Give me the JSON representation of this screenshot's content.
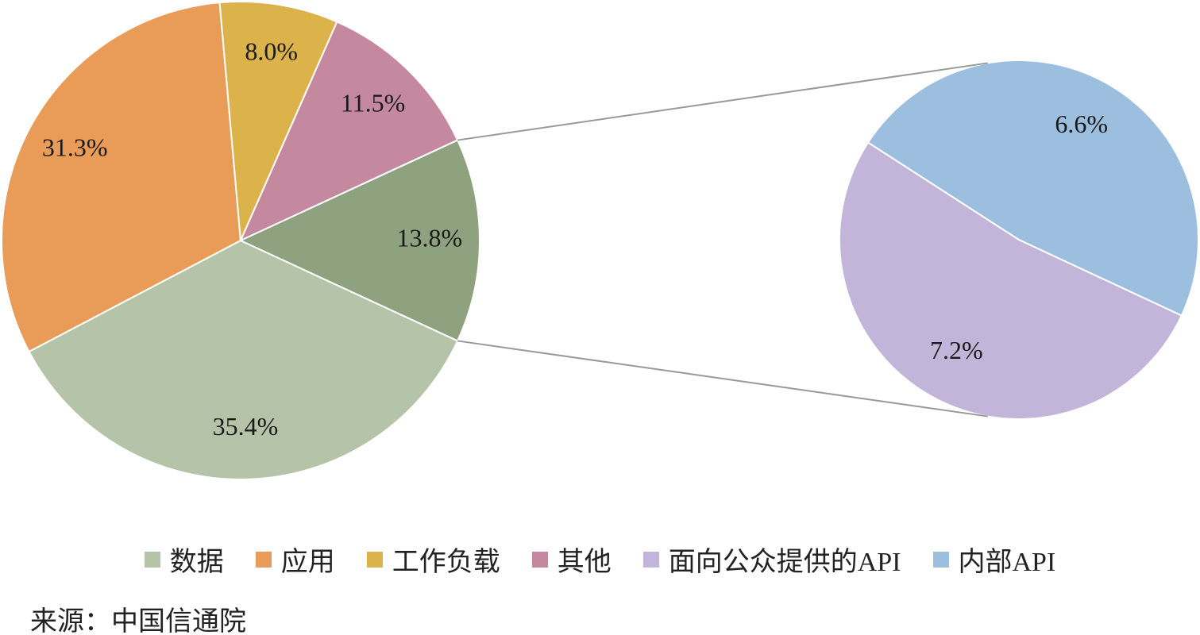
{
  "chart_data": {
    "type": "pie",
    "categories": [
      "数据",
      "应用",
      "工作负载",
      "其他",
      null
    ],
    "values": [
      35.4,
      31.3,
      8.0,
      11.5,
      13.8
    ],
    "value_labels": [
      "35.4%",
      "31.3%",
      "8.0%",
      "11.5%",
      "13.8%"
    ],
    "colors": [
      "#b5c4a8",
      "#e99c58",
      "#dcb24a",
      "#c4899f",
      "#8ea27f"
    ],
    "secondary": {
      "categories": [
        "面向公众提供的API",
        "内部API"
      ],
      "values": [
        7.2,
        6.6
      ],
      "value_labels": [
        "7.2%",
        "6.6%"
      ],
      "colors": [
        "#c2b5d9",
        "#9dbfdf"
      ]
    },
    "legend": "bottom",
    "source": "来源：中国信通院"
  }
}
